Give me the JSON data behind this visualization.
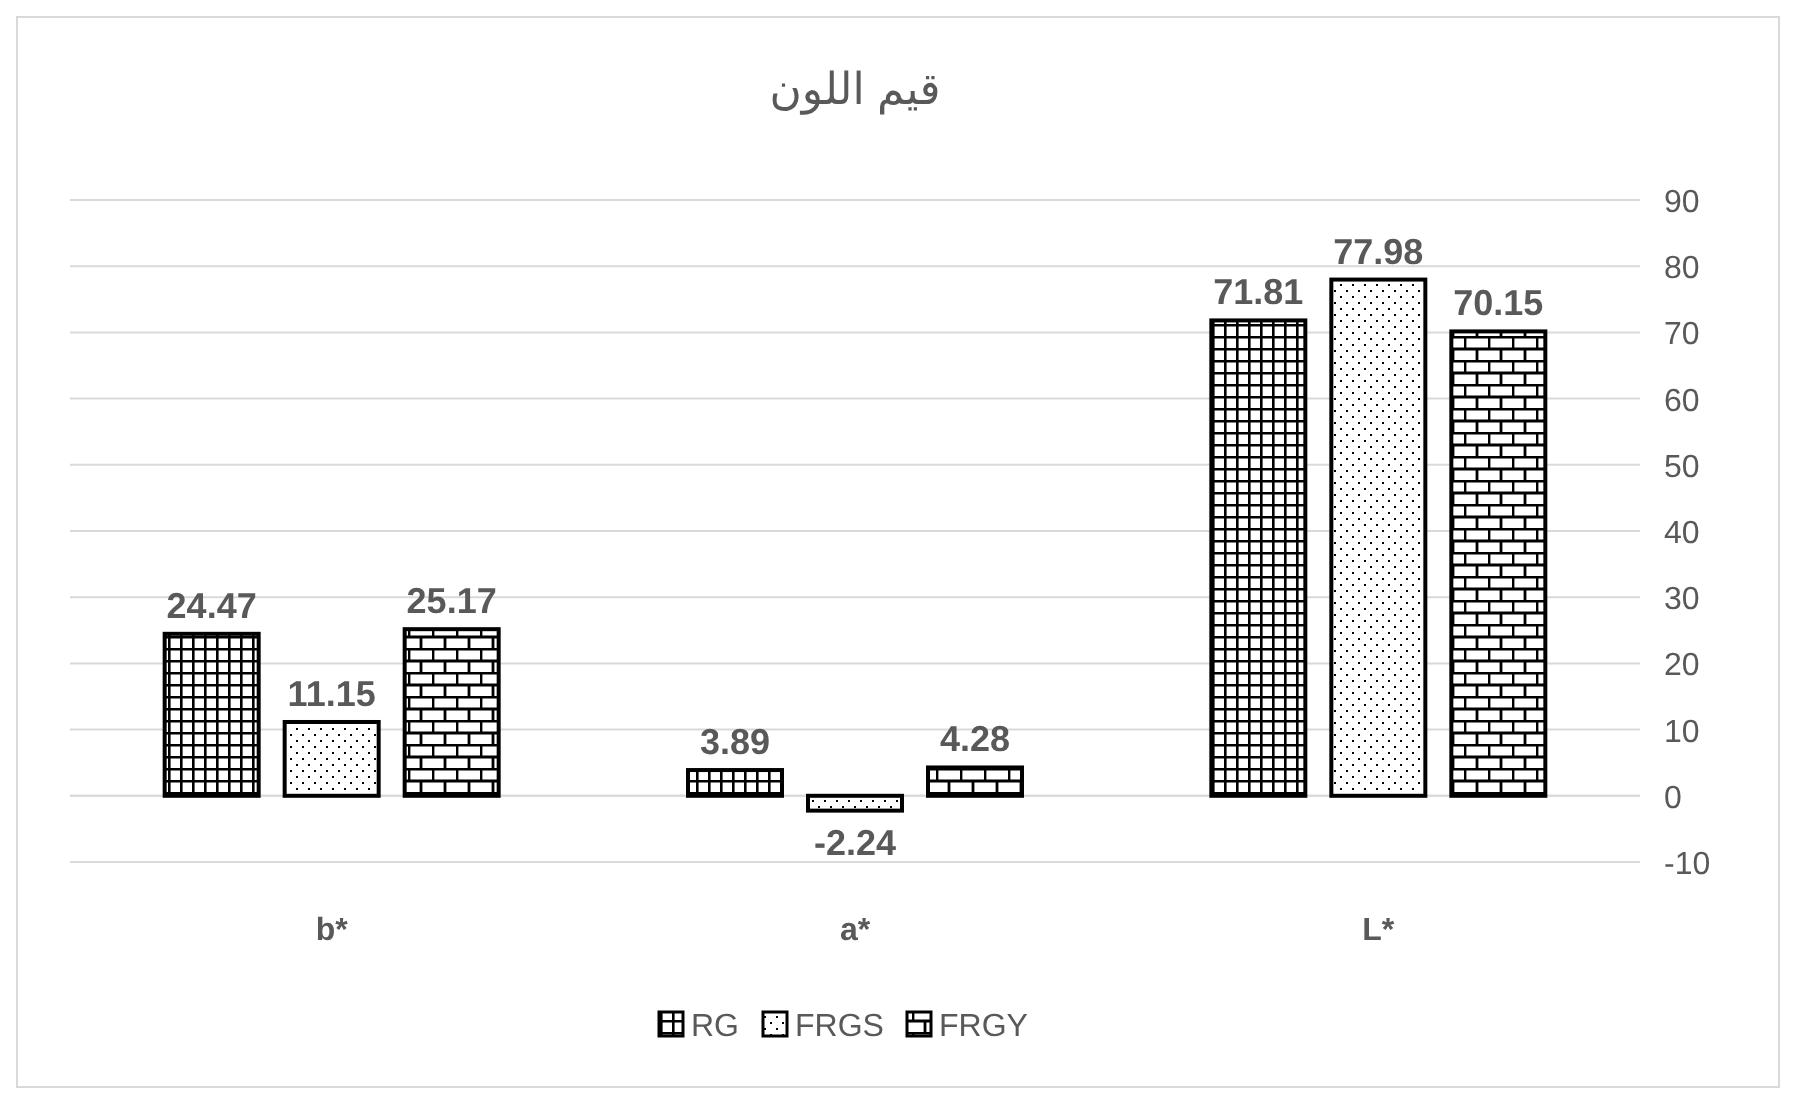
{
  "chart_data": {
    "type": "bar",
    "title": "قيم اللون",
    "categories": [
      "b*",
      "a*",
      "L*"
    ],
    "series": [
      {
        "name": "RG",
        "color": "#000000",
        "values": [
          24.47,
          3.89,
          71.81
        ]
      },
      {
        "name": "FRGS",
        "color": "#000000",
        "values": [
          11.15,
          -2.24,
          77.98
        ]
      },
      {
        "name": "FRGY",
        "color": "#000000",
        "values": [
          25.17,
          4.28,
          70.15
        ]
      }
    ],
    "ylim": [
      -10,
      90
    ],
    "yticks": [
      -10,
      0,
      10,
      20,
      30,
      40,
      50,
      60,
      70,
      80,
      90
    ],
    "grid": "y",
    "legend": "bottom",
    "data_labels": true
  }
}
